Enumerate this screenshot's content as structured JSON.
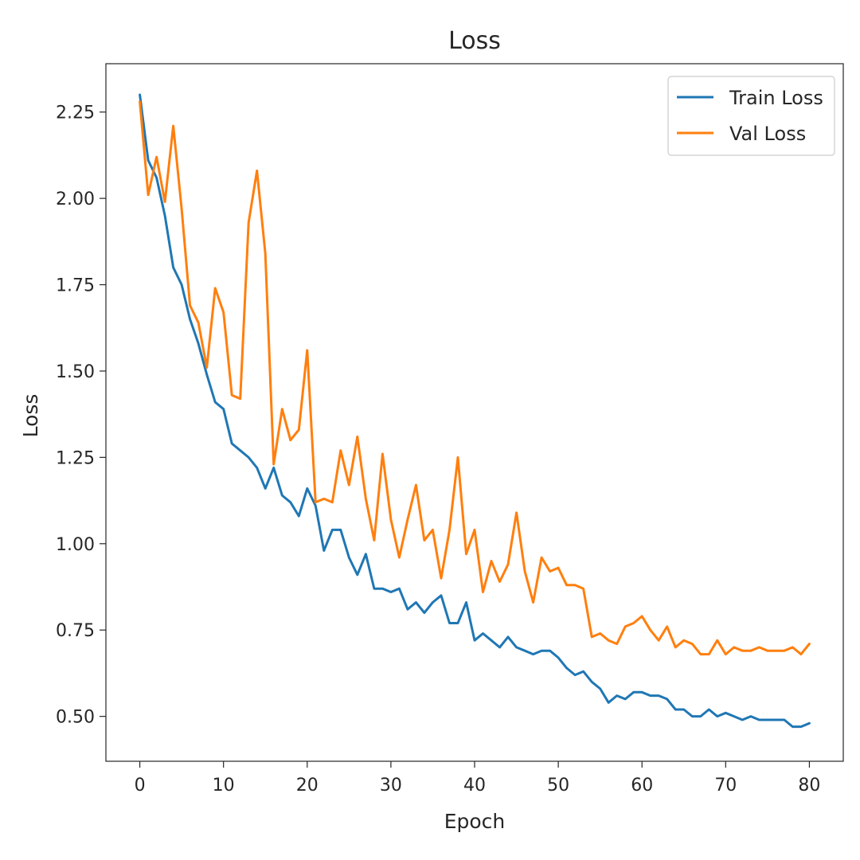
{
  "chart_data": {
    "type": "line",
    "title": "Loss",
    "xlabel": "Epoch",
    "ylabel": "Loss",
    "xlim": [
      -4.05,
      84.05
    ],
    "ylim": [
      0.37,
      2.39
    ],
    "x_ticks": [
      0,
      10,
      20,
      30,
      40,
      50,
      60,
      70,
      80
    ],
    "y_ticks": [
      0.5,
      0.75,
      1.0,
      1.25,
      1.5,
      1.75,
      2.0,
      2.25
    ],
    "y_tick_labels": [
      "0.50",
      "0.75",
      "1.00",
      "1.25",
      "1.50",
      "1.75",
      "2.00",
      "2.25"
    ],
    "x_tick_labels": [
      "0",
      "10",
      "20",
      "30",
      "40",
      "50",
      "60",
      "70",
      "80"
    ],
    "grid": false,
    "legend_position": "top-right",
    "series": [
      {
        "name": "Train Loss",
        "color": "#1f77b4",
        "values": [
          2.3,
          2.11,
          2.06,
          1.95,
          1.8,
          1.75,
          1.65,
          1.58,
          1.49,
          1.41,
          1.39,
          1.29,
          1.27,
          1.25,
          1.22,
          1.16,
          1.22,
          1.14,
          1.12,
          1.08,
          1.16,
          1.11,
          0.98,
          1.04,
          1.04,
          0.96,
          0.91,
          0.97,
          0.87,
          0.87,
          0.86,
          0.87,
          0.81,
          0.83,
          0.8,
          0.83,
          0.85,
          0.77,
          0.77,
          0.83,
          0.72,
          0.74,
          0.72,
          0.7,
          0.73,
          0.7,
          0.69,
          0.68,
          0.69,
          0.69,
          0.67,
          0.64,
          0.62,
          0.63,
          0.6,
          0.58,
          0.54,
          0.56,
          0.55,
          0.57,
          0.57,
          0.56,
          0.56,
          0.55,
          0.52,
          0.52,
          0.5,
          0.5,
          0.52,
          0.5,
          0.51,
          0.5,
          0.49,
          0.5,
          0.49,
          0.49,
          0.49,
          0.49,
          0.47,
          0.47,
          0.48
        ]
      },
      {
        "name": "Val Loss",
        "color": "#ff7f0e",
        "values": [
          2.28,
          2.01,
          2.12,
          1.99,
          2.21,
          1.97,
          1.69,
          1.64,
          1.51,
          1.74,
          1.67,
          1.43,
          1.42,
          1.93,
          2.08,
          1.84,
          1.23,
          1.39,
          1.3,
          1.33,
          1.56,
          1.12,
          1.13,
          1.12,
          1.27,
          1.17,
          1.31,
          1.13,
          1.01,
          1.26,
          1.07,
          0.96,
          1.07,
          1.17,
          1.01,
          1.04,
          0.9,
          1.04,
          1.25,
          0.97,
          1.04,
          0.86,
          0.95,
          0.89,
          0.94,
          1.09,
          0.92,
          0.83,
          0.96,
          0.92,
          0.93,
          0.88,
          0.88,
          0.87,
          0.73,
          0.74,
          0.72,
          0.71,
          0.76,
          0.77,
          0.79,
          0.75,
          0.72,
          0.76,
          0.7,
          0.72,
          0.71,
          0.68,
          0.68,
          0.72,
          0.68,
          0.7,
          0.69,
          0.69,
          0.7,
          0.69,
          0.69,
          0.69,
          0.7,
          0.68,
          0.71
        ]
      }
    ]
  }
}
